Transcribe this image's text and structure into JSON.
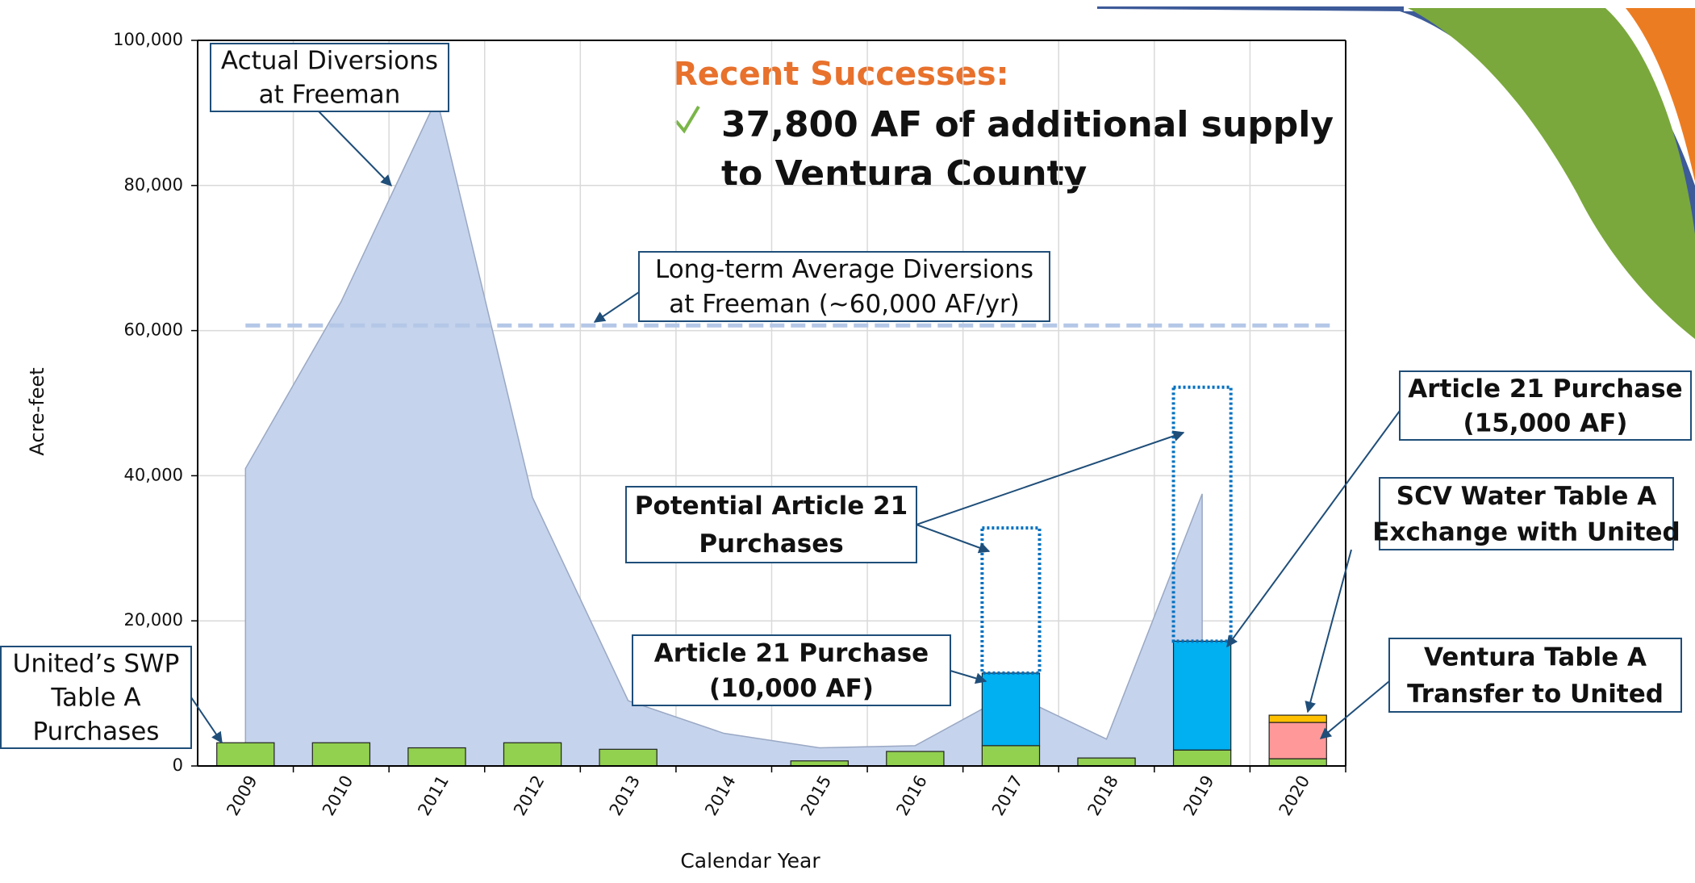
{
  "chart_data": {
    "type": "bar",
    "stacked": true,
    "title": "Recent Successes:",
    "subtitle": [
      "37,800 AF of additional supply",
      "to Ventura County"
    ],
    "y_label": "Acre-feet",
    "x_label": "Calendar Year",
    "categories": [
      "2009",
      "2010",
      "2011",
      "2012",
      "2013",
      "2014",
      "2015",
      "2016",
      "2017",
      "2018",
      "2019",
      "2020"
    ],
    "ylim": [
      0,
      100000
    ],
    "yticks": [
      0,
      {
        "value": 20000,
        "label": "20,000"
      },
      {
        "value": 40000,
        "label": "40,000"
      },
      {
        "value": 60000,
        "label": "60,000"
      },
      {
        "value": 80000,
        "label": "80,000"
      },
      {
        "value": 100000,
        "label": "100,000"
      }
    ],
    "grid": true,
    "series": [
      {
        "type": "area",
        "color": "#c5d3ec",
        "values": [
          41000,
          64000,
          92000,
          37000,
          9000,
          4500,
          2500,
          2800,
          10000,
          3700,
          37500,
          null
        ]
      },
      {
        "type": "bar",
        "color": "#92d050",
        "values": [
          3200,
          3200,
          2500,
          3200,
          2300,
          null,
          700,
          2000,
          2800,
          1100,
          2200,
          1000
        ]
      },
      {
        "type": "bar",
        "color": "#00b0f0",
        "values": [
          null,
          null,
          null,
          null,
          null,
          null,
          null,
          null,
          10000,
          null,
          15000,
          null
        ]
      },
      {
        "type": "bar",
        "color": "#ff9999",
        "values": [
          null,
          null,
          null,
          null,
          null,
          null,
          null,
          null,
          null,
          null,
          null,
          5000
        ]
      },
      {
        "type": "bar",
        "color": "#ffc000",
        "values": [
          null,
          null,
          null,
          null,
          null,
          null,
          null,
          null,
          null,
          null,
          null,
          1000
        ]
      },
      {
        "type": "bar",
        "style": "dotted",
        "color": "#0070c0",
        "values": [
          null,
          null,
          null,
          null,
          null,
          null,
          null,
          null,
          20000,
          null,
          35000,
          null
        ]
      }
    ],
    "reference_line": {
      "value": 60700,
      "color": "#b4c7e7"
    },
    "annotations": [
      {
        "lines": [
          "Actual Diversions",
          "at Freeman"
        ]
      },
      {
        "lines": [
          "Long-term Average Diversions",
          "at Freeman (~60,000 AF/yr)"
        ]
      },
      {
        "lines": [
          "Potential Article 21",
          "Purchases"
        ]
      },
      {
        "lines": [
          "Article 21 Purchase",
          "(10,000 AF)"
        ]
      },
      {
        "lines": [
          "Article 21 Purchase",
          "(15,000 AF)"
        ]
      },
      {
        "lines": [
          "SCV Water Table A",
          "Exchange with United"
        ]
      },
      {
        "lines": [
          "Ventura Table A",
          "Transfer to United"
        ]
      },
      {
        "lines": [
          "United’s SWP",
          "Table A",
          "Purchases"
        ]
      }
    ]
  }
}
